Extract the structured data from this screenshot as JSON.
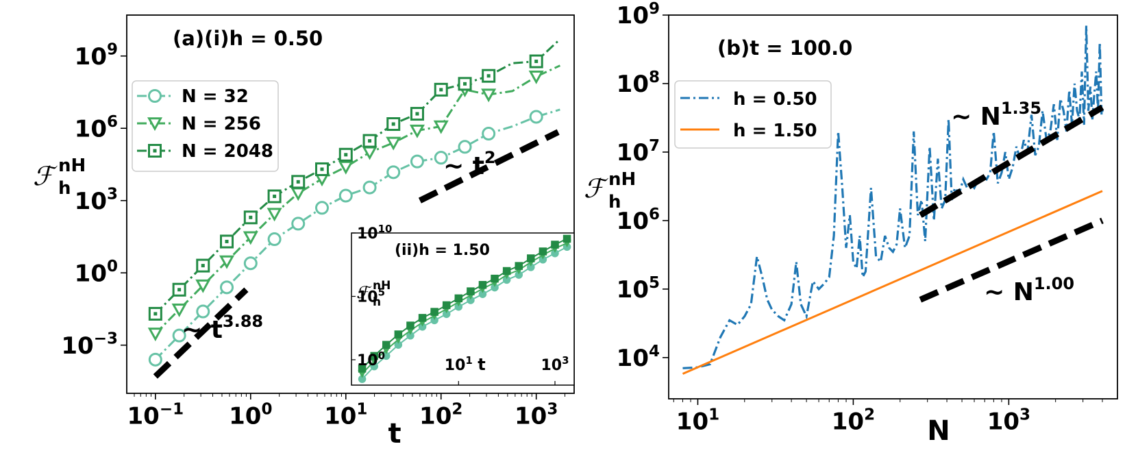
{
  "chart_data": [
    {
      "id": "a",
      "type": "line",
      "title": "(a)(i)h = 0.50",
      "xlabel": "t",
      "ylabel_main": "ℱ",
      "ylabel_sub": "h",
      "ylabel_sup": "nH",
      "xscale": "log",
      "yscale": "log",
      "xlim": [
        0.05,
        2500
      ],
      "ylim": [
        1e-05,
        50000000000
      ],
      "xticks": [
        {
          "value": 0.1,
          "base": "10",
          "exp": "−1"
        },
        {
          "value": 1,
          "base": "10",
          "exp": "0"
        },
        {
          "value": 10,
          "base": "10",
          "exp": "1"
        },
        {
          "value": 100,
          "base": "10",
          "exp": "2"
        },
        {
          "value": 1000,
          "base": "10",
          "exp": "3"
        }
      ],
      "yticks": [
        {
          "value": 0.001,
          "base": "10",
          "exp": "−3"
        },
        {
          "value": 1,
          "base": "10",
          "exp": "0"
        },
        {
          "value": 1000,
          "base": "10",
          "exp": "3"
        },
        {
          "value": 1000000,
          "base": "10",
          "exp": "6"
        },
        {
          "value": 1000000000,
          "base": "10",
          "exp": "9"
        }
      ],
      "series": [
        {
          "name": "N = 32",
          "color": "#66c2a5",
          "marker": "circle",
          "x": [
            0.1,
            0.178,
            0.316,
            0.562,
            1,
            1.78,
            3.16,
            5.62,
            10,
            17.8,
            31.6,
            56.2,
            100,
            178,
            316,
            562,
            1000,
            1778
          ],
          "y": [
            0.00025,
            0.0025,
            0.025,
            0.25,
            2.5,
            25,
            110,
            500,
            1600,
            3500,
            15000,
            42000,
            60000,
            170000,
            600000,
            1200000,
            3000000,
            6000000
          ]
        },
        {
          "name": "N = 256",
          "color": "#41ab5d",
          "marker": "triangle",
          "x": [
            0.1,
            0.178,
            0.316,
            0.562,
            1,
            1.78,
            3.16,
            5.62,
            10,
            17.8,
            31.6,
            56.2,
            100,
            178,
            316,
            562,
            1000,
            1778
          ],
          "y": [
            0.003,
            0.03,
            0.3,
            3,
            30,
            280,
            2000,
            8000,
            25000,
            100000,
            250000,
            800000,
            1200000,
            40000000,
            25000000,
            35000000,
            140000000,
            400000000
          ]
        },
        {
          "name": "N = 2048",
          "color": "#238b45",
          "marker": "square",
          "x": [
            0.1,
            0.178,
            0.316,
            0.562,
            1,
            1.78,
            3.16,
            5.62,
            10,
            17.8,
            31.6,
            56.2,
            100,
            178,
            316,
            562,
            1000,
            1778
          ],
          "y": [
            0.02,
            0.2,
            2,
            20,
            200,
            1500,
            6000,
            20000,
            80000,
            300000,
            1500000,
            4000000,
            40000000,
            70000000,
            150000000,
            500000000,
            600000000,
            5000000000
          ]
        }
      ],
      "guides": [
        {
          "label": "t",
          "exp": "3.88",
          "x": [
            0.1,
            0.9
          ],
          "y": [
            5e-05,
            0.2
          ]
        },
        {
          "label": "t",
          "exp": "2",
          "x": [
            60,
            1700
          ],
          "y": [
            1000,
            700000
          ]
        }
      ],
      "legend": "upper-left",
      "inset": {
        "title": "(ii)h = 1.50",
        "xlabel": "t",
        "ylabel_main": "ℱ",
        "ylabel_sub": "h",
        "ylabel_sup": "nH",
        "xlim": [
          0.06,
          2500
        ],
        "ylim": [
          0.01,
          10000000000
        ],
        "xticks": [
          {
            "value": 10,
            "base": "10",
            "exp": "1"
          },
          {
            "value": 1000,
            "base": "10",
            "exp": "3"
          }
        ],
        "yticks": [
          {
            "value": 1,
            "base": "10",
            "exp": "0"
          },
          {
            "value": 100000,
            "base": "10",
            "exp": "5"
          },
          {
            "value": 10000000000,
            "base": "10",
            "exp": "10"
          }
        ],
        "series": [
          {
            "name": "N = 32",
            "color": "#66c2a5",
            "marker": "circle",
            "x": [
              0.1,
              0.178,
              0.316,
              0.562,
              1,
              1.78,
              3.16,
              5.62,
              10,
              17.8,
              31.6,
              56.2,
              100,
              178,
              316,
              562,
              1000,
              1778
            ],
            "y": [
              0.03,
              0.3,
              2,
              15,
              80,
              400,
              1300,
              4000,
              15000,
              50000,
              150000,
              500000,
              2000000,
              5000000,
              20000000,
              80000000,
              250000000,
              800000000
            ]
          },
          {
            "name": "N = 256",
            "color": "#41ab5d",
            "marker": "triangle",
            "x": [
              0.1,
              0.178,
              0.316,
              0.562,
              1,
              1.78,
              3.16,
              5.62,
              10,
              17.8,
              31.6,
              56.2,
              100,
              178,
              316,
              562,
              1000,
              1778
            ],
            "y": [
              0.08,
              0.8,
              6,
              40,
              200,
              900,
              3000,
              10000,
              35000,
              120000,
              400000,
              1200000,
              5000000,
              12000000,
              50000000,
              180000000,
              600000000,
              1600000000
            ]
          },
          {
            "name": "N = 2048",
            "color": "#238b45",
            "marker": "square",
            "x": [
              0.1,
              0.178,
              0.316,
              0.562,
              1,
              1.78,
              3.16,
              5.62,
              10,
              17.8,
              31.6,
              56.2,
              100,
              178,
              316,
              562,
              1000,
              1778
            ],
            "y": [
              0.2,
              2,
              15,
              100,
              500,
              2000,
              6000,
              20000,
              70000,
              250000,
              800000,
              2500000,
              10000000,
              25000000,
              100000000,
              350000000,
              1200000000,
              3500000000
            ]
          }
        ]
      }
    },
    {
      "id": "b",
      "type": "line",
      "title": "(b)t = 100.0",
      "xlabel": "N",
      "ylabel_main": "ℱ",
      "ylabel_sub": "h",
      "ylabel_sup": "nH",
      "xscale": "log",
      "yscale": "log",
      "xlim": [
        6.5,
        5000
      ],
      "ylim": [
        2500,
        1000000000
      ],
      "xticks": [
        {
          "value": 10,
          "base": "10",
          "exp": "1"
        },
        {
          "value": 100,
          "base": "10",
          "exp": "2"
        },
        {
          "value": 1000,
          "base": "10",
          "exp": "3"
        }
      ],
      "yticks": [
        {
          "value": 10000,
          "base": "10",
          "exp": "4"
        },
        {
          "value": 100000,
          "base": "10",
          "exp": "5"
        },
        {
          "value": 1000000,
          "base": "10",
          "exp": "6"
        },
        {
          "value": 10000000,
          "base": "10",
          "exp": "7"
        },
        {
          "value": 100000000,
          "base": "10",
          "exp": "8"
        },
        {
          "value": 1000000000,
          "base": "10",
          "exp": "9"
        }
      ],
      "series": [
        {
          "name": "h = 0.50",
          "color": "#1f77b4",
          "style": "dashdot",
          "x": [
            8,
            10,
            12,
            14,
            16,
            18,
            20,
            22,
            24,
            26,
            28,
            30,
            33,
            36,
            40,
            43,
            46,
            50,
            55,
            60,
            65,
            70,
            75,
            80,
            85,
            90,
            95,
            100,
            105,
            110,
            115,
            120,
            130,
            140,
            150,
            160,
            170,
            180,
            190,
            200,
            215,
            230,
            245,
            260,
            275,
            290,
            310,
            330,
            350,
            370,
            390,
            410,
            430,
            450,
            480,
            510,
            540,
            570,
            600,
            640,
            680,
            720,
            760,
            800,
            850,
            900,
            950,
            1000,
            1060,
            1120,
            1180,
            1250,
            1320,
            1400,
            1480,
            1560,
            1650,
            1750,
            1850,
            1950,
            2050,
            2150,
            2250,
            2350,
            2450,
            2550,
            2650,
            2750,
            2850,
            2950,
            3050,
            3150,
            3250,
            3350,
            3450,
            3550,
            3650,
            3750,
            3850,
            3950,
            4050
          ],
          "y": [
            7000,
            7200,
            8000,
            20000,
            35000,
            30000,
            40000,
            60000,
            300000,
            150000,
            70000,
            50000,
            40000,
            35000,
            60000,
            250000,
            60000,
            40000,
            130000,
            100000,
            120000,
            150000,
            600000,
            20000000,
            3000000,
            400000,
            1200000,
            250000,
            200000,
            600000,
            150000,
            180000,
            3000000,
            300000,
            250000,
            600000,
            400000,
            350000,
            450000,
            1500000,
            400000,
            600000,
            20000000,
            1200000,
            2000000,
            500000,
            12000000,
            1000000,
            8000000,
            1500000,
            2000000,
            30000000,
            2000000,
            3000000,
            2500000,
            4000000,
            3000000,
            3500000,
            3000000,
            4000000,
            4500000,
            4000000,
            5000000,
            20000000,
            3500000,
            5000000,
            10000000,
            4000000,
            6000000,
            12000000,
            8000000,
            15000000,
            10000000,
            35000000,
            9000000,
            12000000,
            40000000,
            15000000,
            20000000,
            50000000,
            15000000,
            60000000,
            40000000,
            20000000,
            80000000,
            25000000,
            100000000,
            40000000,
            30000000,
            150000000,
            25000000,
            700000000,
            40000000,
            90000000,
            30000000,
            70000000,
            150000000,
            40000000,
            400000000,
            35000000,
            45000000
          ]
        },
        {
          "name": "h = 1.50",
          "color": "#ff7f0e",
          "style": "solid",
          "x": [
            8,
            4000
          ],
          "y": [
            5800,
            2700000
          ]
        }
      ],
      "guides": [
        {
          "label": "N",
          "exp": "1.35",
          "x": [
            270,
            4000
          ],
          "y": [
            1200000,
            45000000
          ]
        },
        {
          "label": "N",
          "exp": "1.00",
          "x": [
            270,
            4000
          ],
          "y": [
            70000,
            1000000
          ]
        }
      ],
      "legend": "upper-left"
    }
  ]
}
